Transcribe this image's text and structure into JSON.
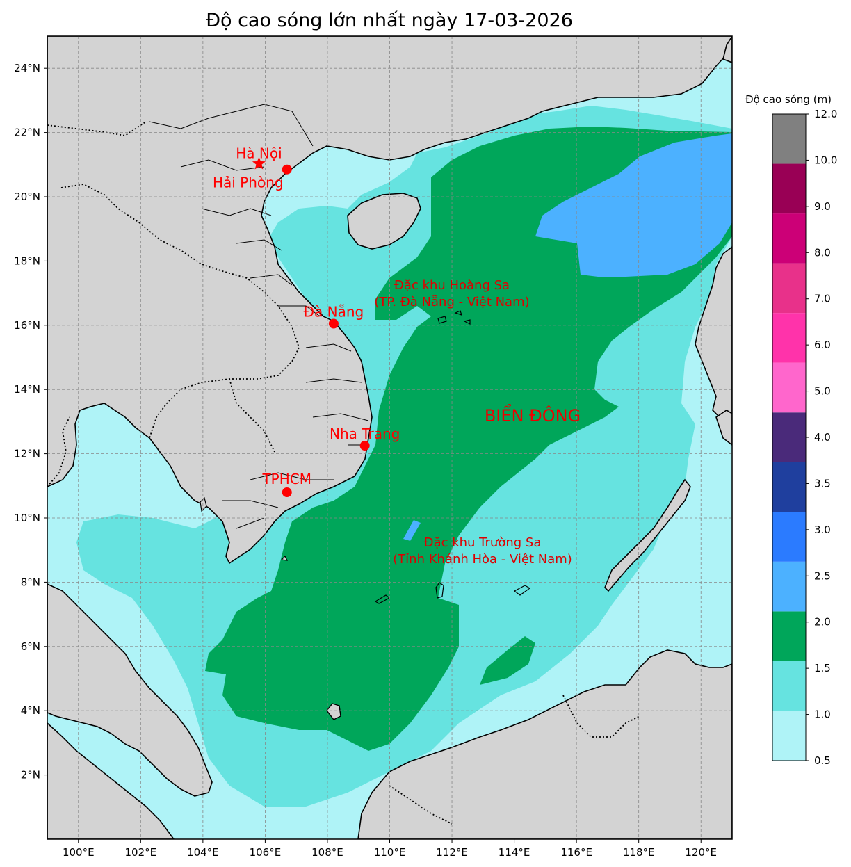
{
  "title": "Độ cao sóng lớn nhất ngày 17-03-2026",
  "map": {
    "lon_range": [
      99,
      121
    ],
    "lat_range": [
      0,
      25
    ],
    "lon_ticks": [
      100,
      102,
      104,
      106,
      108,
      110,
      112,
      114,
      116,
      118,
      120
    ],
    "lon_tick_labels": [
      "100°E",
      "102°E",
      "104°E",
      "106°E",
      "108°E",
      "110°E",
      "112°E",
      "114°E",
      "116°E",
      "118°E",
      "120°E"
    ],
    "lat_ticks": [
      2,
      4,
      6,
      8,
      10,
      12,
      14,
      16,
      18,
      20,
      22,
      24
    ],
    "lat_tick_labels": [
      "2°N",
      "4°N",
      "6°N",
      "8°N",
      "10°N",
      "12°N",
      "14°N",
      "16°N",
      "18°N",
      "20°N",
      "22°N",
      "24°N"
    ],
    "grid": true,
    "land_color": "#d3d3d3",
    "ocean_base_color": "#aff3f7"
  },
  "colorbar": {
    "label": "Độ cao sóng (m)",
    "ticks": [
      "0.5",
      "1.0",
      "1.5",
      "2.0",
      "2.5",
      "3.0",
      "3.5",
      "4.0",
      "5.0",
      "6.0",
      "7.0",
      "8.0",
      "9.0",
      "10.0",
      "12.0"
    ],
    "colors": [
      "#aff3f7",
      "#66e3e0",
      "#00a65a",
      "#4cb1ff",
      "#2b7bff",
      "#1f3f9e",
      "#4a2a7a",
      "#ff66cc",
      "#ff33aa",
      "#e8318a",
      "#cc0077",
      "#990055",
      "#808080"
    ]
  },
  "cities": [
    {
      "name": "Hà Nội",
      "lon": 105.8,
      "lat": 21.03,
      "marker": "star"
    },
    {
      "name": "Hải Phòng",
      "lon": 106.7,
      "lat": 20.85,
      "marker": "dot"
    },
    {
      "name": "Đà Nẵng",
      "lon": 108.2,
      "lat": 16.05,
      "marker": "dot"
    },
    {
      "name": "Nha Trang",
      "lon": 109.2,
      "lat": 12.25,
      "marker": "dot"
    },
    {
      "name": "TPHCM",
      "lon": 106.7,
      "lat": 10.8,
      "marker": "dot"
    }
  ],
  "labels": {
    "hoang_sa_line1": "Đặc khu Hoàng Sa",
    "hoang_sa_line2": "(TP. Đà Nẵng - Việt Nam)",
    "truong_sa_line1": "Đặc khu Trường Sa",
    "truong_sa_line2": "(Tỉnh Khánh Hòa - Việt Nam)",
    "sea": "BIỂN ĐÔNG"
  },
  "wave_zones": [
    {
      "range": "1.0-1.5",
      "color": "#66e3e0"
    },
    {
      "range": "1.5-2.0",
      "color": "#00a65a"
    },
    {
      "range": "2.0-2.5",
      "color": "#4cb1ff"
    }
  ]
}
